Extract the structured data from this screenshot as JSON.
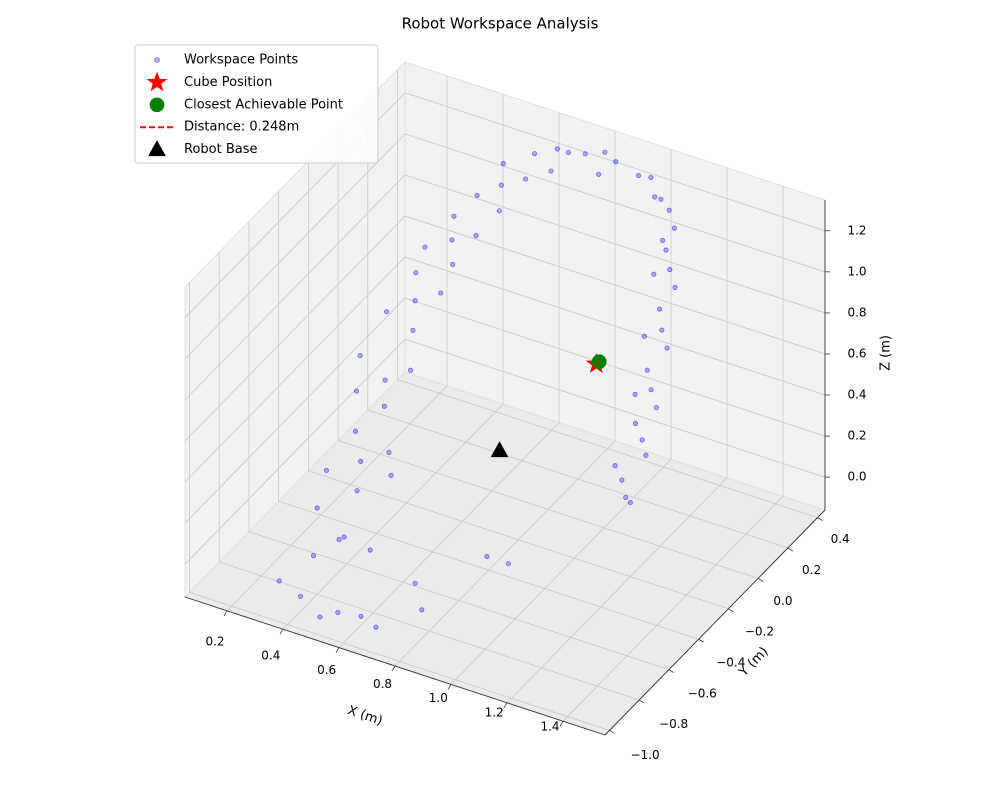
{
  "chart_data": {
    "type": "scatter3d",
    "title": "Robot Workspace Analysis",
    "xlabel": "X (m)",
    "ylabel": "Y (m)",
    "zlabel": "Z (m)",
    "xlim": [
      0.05,
      1.55
    ],
    "ylim": [
      -1.03,
      0.45
    ],
    "zlim": [
      -0.16,
      1.35
    ],
    "xticks": [
      0.2,
      0.4,
      0.6,
      0.8,
      {
        "value": 1,
        "label": "1.0"
      },
      1.2,
      1.4
    ],
    "yticks": [
      {
        "value": -1,
        "label": "−1.0"
      },
      {
        "value": -0.8,
        "label": "−0.8"
      },
      {
        "value": -0.6,
        "label": "−0.6"
      },
      {
        "value": -0.4,
        "label": "−0.4"
      },
      {
        "value": -0.2,
        "label": "−0.2"
      },
      {
        "value": 0,
        "label": "0.0"
      },
      0.2,
      0.4
    ],
    "zticks": [
      {
        "value": 0,
        "label": "0.0"
      },
      0.2,
      0.4,
      0.6,
      0.8,
      {
        "value": 1,
        "label": "1.0"
      },
      1.2
    ],
    "grid": true,
    "legend": "upper left",
    "series": [
      {
        "name": "Workspace Points",
        "color": "#0000ff",
        "marker": "o",
        "size": 10,
        "alpha": 0.3,
        "x": [
          0.5,
          0.42,
          0.58,
          0.62,
          0.36,
          0.7,
          0.51,
          0.44,
          0.6,
          0.4,
          0.56,
          0.47,
          0.38,
          0.55,
          0.5,
          0.42,
          0.6,
          0.43,
          0.36,
          0.5,
          0.47,
          0.33,
          0.41,
          0.34,
          0.48,
          0.45,
          0.37,
          0.43,
          0.36,
          0.5,
          0.47,
          0.4,
          0.5,
          0.44,
          0.56,
          0.53,
          0.47,
          0.61,
          0.55,
          0.66,
          0.63,
          0.78,
          0.72,
          0.84,
          0.8,
          0.96,
          0.9,
          1.0,
          1.02,
          1.06,
          0.98,
          1.05,
          1.07,
          1.03,
          1.11,
          1.05,
          1.1,
          1.06,
          1.14,
          1.08,
          1.12,
          1.08,
          1.16,
          1.1,
          1.12,
          1.16,
          1.08,
          1.09,
          1.13,
          1.05,
          0.9,
          0.95,
          0.8,
          0.75,
          1.2
        ],
        "y": [
          -0.97,
          -0.95,
          -1.0,
          -0.92,
          -0.98,
          -0.97,
          -0.86,
          -0.9,
          -0.82,
          -0.8,
          -0.92,
          -0.64,
          -0.7,
          -0.6,
          -0.72,
          -0.58,
          -0.68,
          -0.4,
          -0.46,
          -0.36,
          -0.48,
          -0.38,
          -0.16,
          -0.22,
          -0.12,
          -0.25,
          -0.08,
          0.05,
          0.0,
          0.08,
          -0.02,
          0.12,
          0.25,
          0.2,
          0.3,
          0.18,
          0.32,
          0.42,
          0.38,
          0.4,
          0.34,
          0.42,
          0.4,
          0.38,
          0.34,
          0.39,
          0.42,
          0.34,
          0.4,
          0.36,
          0.42,
          0.3,
          0.31,
          0.36,
          0.27,
          0.24,
          0.2,
          0.26,
          0.16,
          0.12,
          0.09,
          0.14,
          0.05,
          0.02,
          0.03,
          -0.02,
          0.06,
          -0.05,
          -0.1,
          -0.02,
          -0.6,
          -0.55,
          -0.85,
          -0.8,
          -0.2
        ],
        "z": [
          -0.1,
          -0.05,
          -0.02,
          -0.08,
          0.02,
          -0.06,
          0.2,
          0.12,
          0.16,
          0.26,
          0.28,
          0.4,
          0.36,
          0.45,
          0.33,
          0.48,
          0.42,
          0.6,
          0.56,
          0.65,
          0.55,
          0.66,
          0.8,
          0.76,
          0.84,
          0.74,
          0.86,
          0.95,
          0.92,
          0.98,
          0.9,
          1.0,
          1.1,
          1.06,
          1.12,
          1.04,
          1.14,
          1.2,
          1.18,
          1.22,
          1.16,
          1.26,
          1.24,
          1.27,
          1.22,
          1.24,
          1.2,
          1.2,
          1.1,
          1.06,
          1.12,
          1.04,
          0.9,
          0.94,
          0.86,
          0.92,
          0.7,
          0.74,
          0.66,
          0.72,
          0.5,
          0.54,
          0.46,
          0.52,
          0.3,
          0.28,
          0.34,
          0.15,
          0.12,
          0.18,
          0.1,
          0.05,
          -0.02,
          0.05,
          0.2
        ]
      },
      {
        "name": "Cube Position",
        "color": "#ff0000",
        "marker": "*",
        "size": 150,
        "x": [
          0.85
        ],
        "y": [
          0.23
        ],
        "z": [
          0.4
        ]
      },
      {
        "name": "Closest Achievable Point",
        "color": "#008000",
        "marker": "o",
        "size": 100,
        "x": [
          0.77
        ],
        "y": [
          0.4
        ],
        "z": [
          0.25
        ]
      },
      {
        "name": "Distance: 0.248m",
        "color": "#ff0000",
        "marker": "--",
        "x": [
          0.85,
          0.77
        ],
        "y": [
          0.23,
          0.4
        ],
        "z": [
          0.4,
          0.25
        ]
      },
      {
        "name": "Robot Base",
        "color": "#000000",
        "marker": "^",
        "size": 150,
        "x": [
          0.6
        ],
        "y": [
          0.05
        ],
        "z": [
          0
        ]
      }
    ]
  }
}
